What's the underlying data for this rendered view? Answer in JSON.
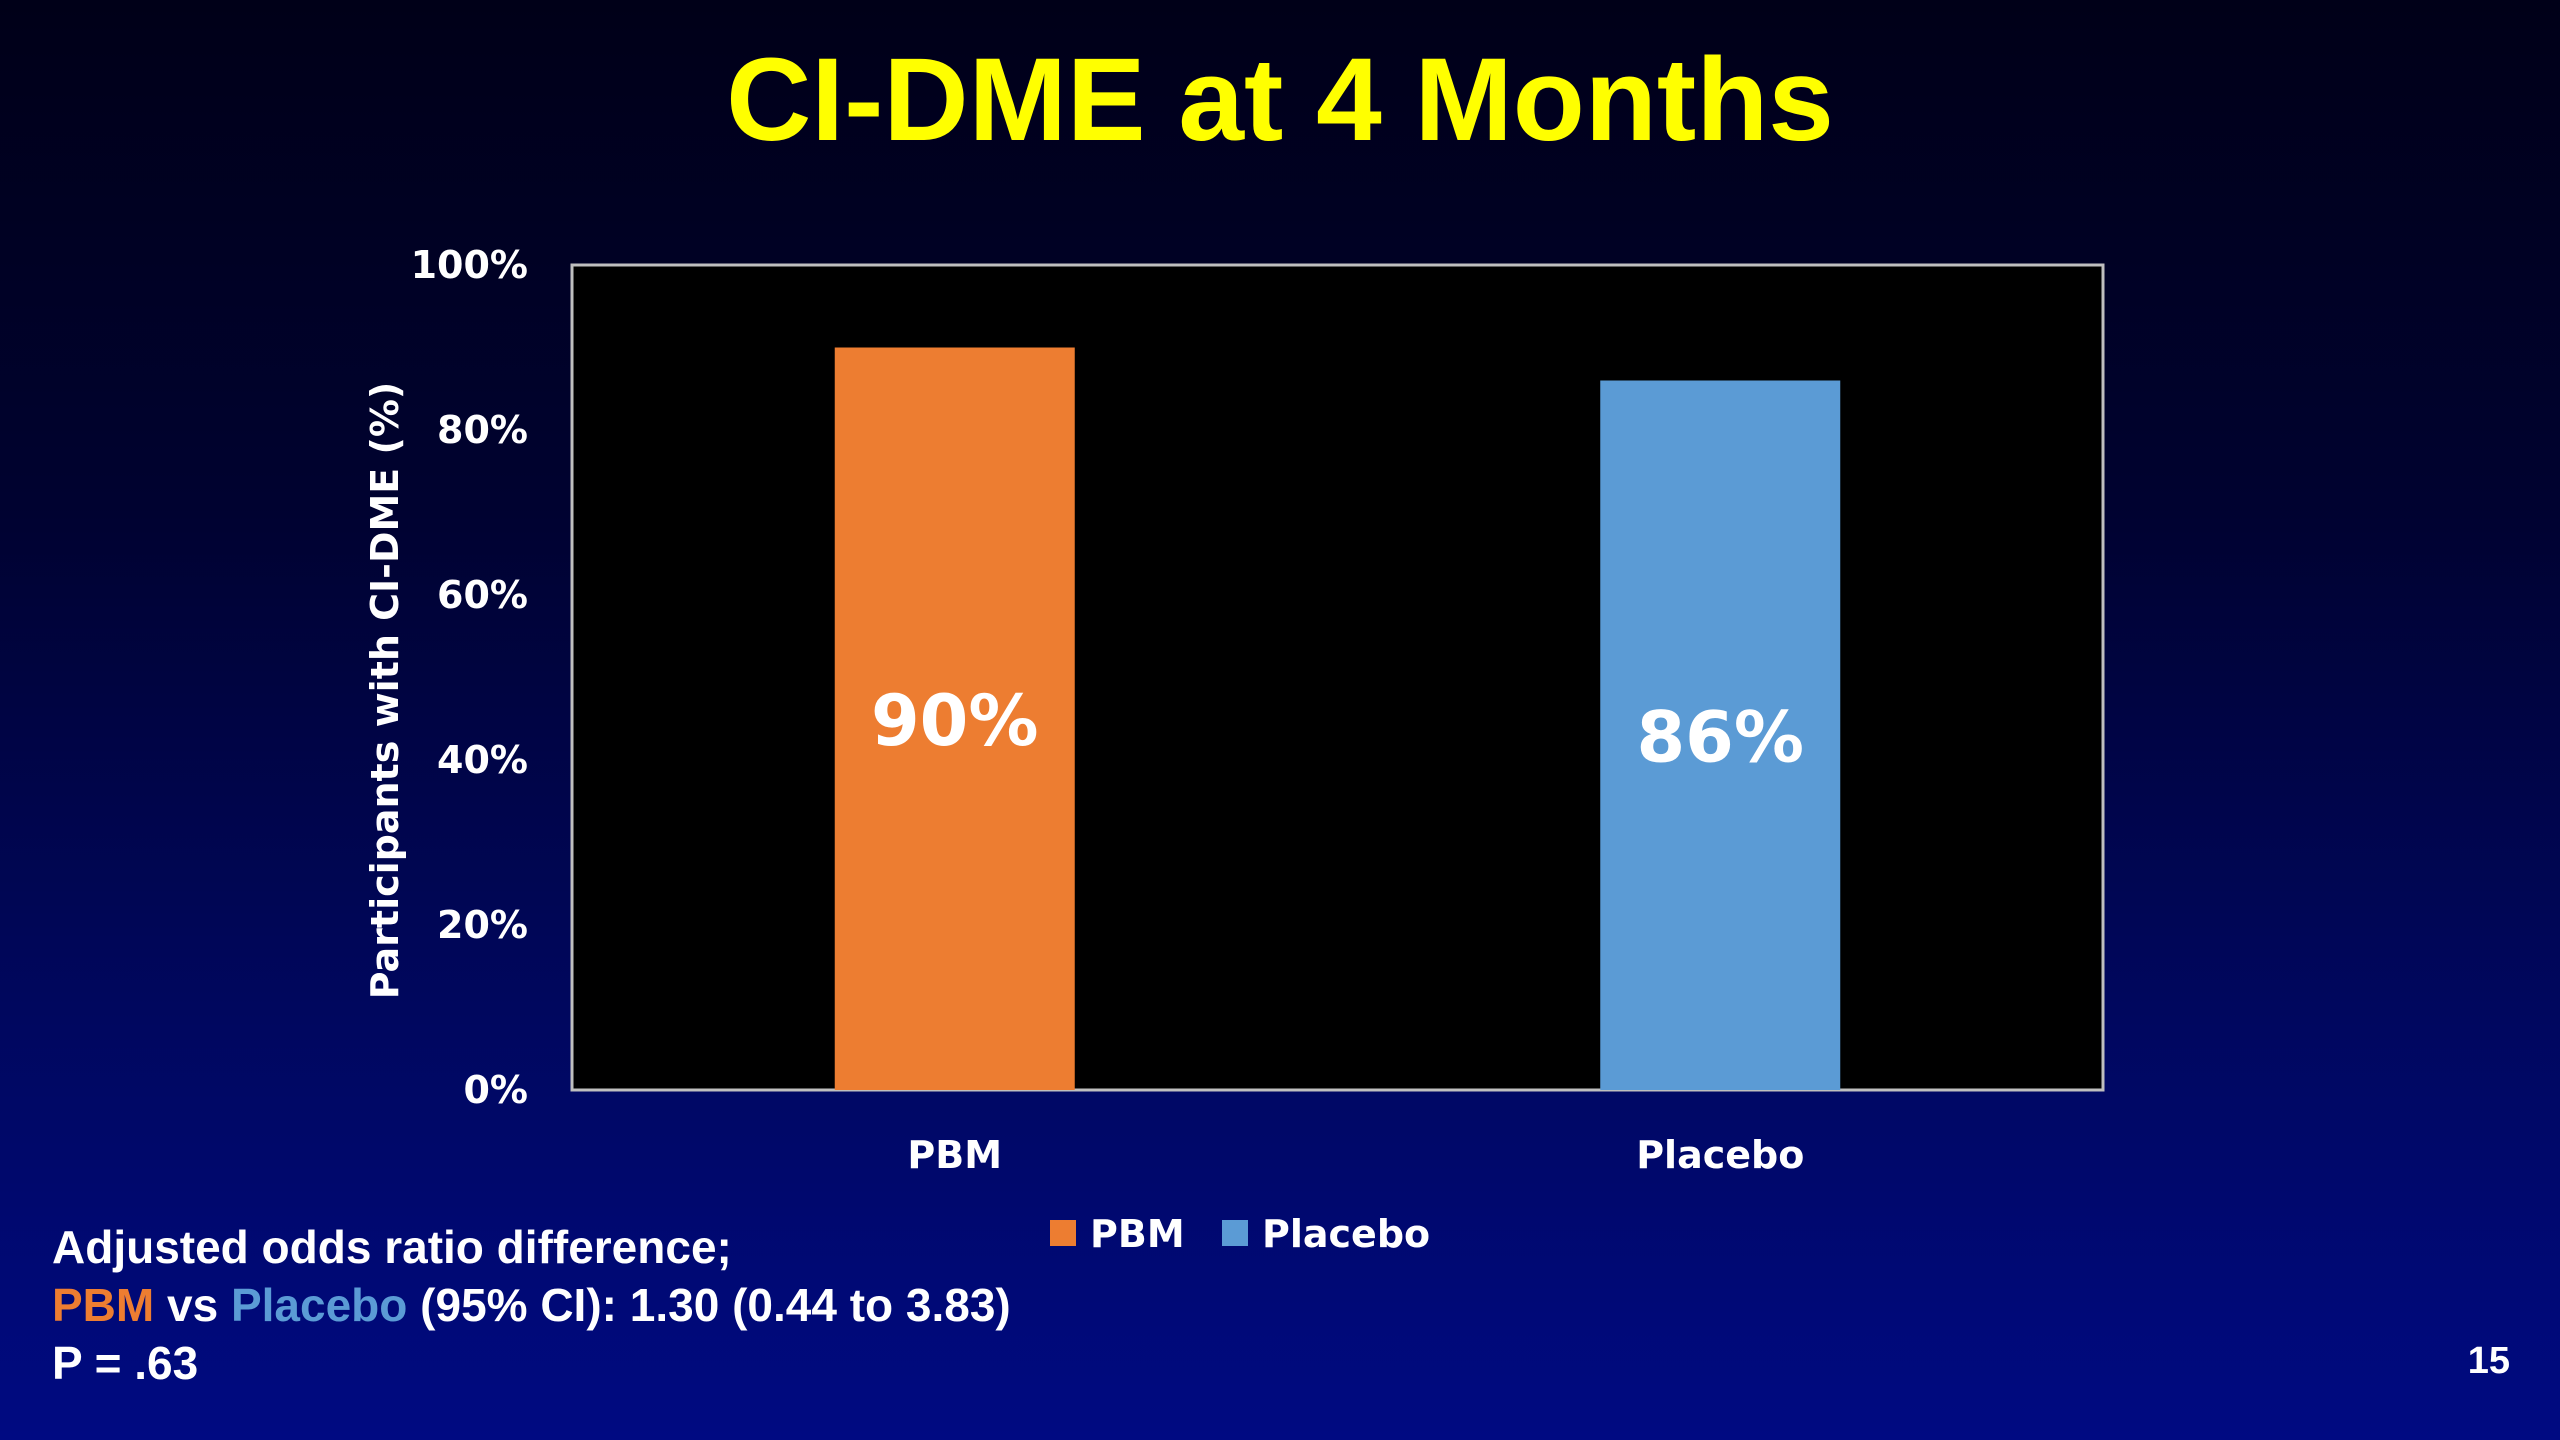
{
  "slide": {
    "title": "CI-DME at 4 Months",
    "page_number": "15"
  },
  "colors": {
    "title": "#ffff00",
    "pbm": "#ed7d31",
    "placebo": "#5b9bd5",
    "plot_background": "#000000",
    "text": "#ffffff"
  },
  "chart_data": {
    "type": "bar",
    "title": "",
    "xlabel": "",
    "ylabel": "Participants with CI-DME (%)",
    "ylim": [
      0,
      100
    ],
    "y_ticks": [
      0,
      20,
      40,
      60,
      80,
      100
    ],
    "y_tick_labels": [
      "0%",
      "20%",
      "40%",
      "60%",
      "80%",
      "100%"
    ],
    "categories": [
      "PBM",
      "Placebo"
    ],
    "values": [
      90,
      86
    ],
    "data_labels": [
      "90%",
      "86%"
    ],
    "bar_colors": [
      "#ed7d31",
      "#5b9bd5"
    ],
    "legend": {
      "position": "bottom-center",
      "entries": [
        {
          "label": "PBM",
          "color": "#ed7d31"
        },
        {
          "label": "Placebo",
          "color": "#5b9bd5"
        }
      ]
    },
    "grid": false
  },
  "footnote": {
    "line1": "Adjusted odds ratio difference;",
    "pbm_label": "PBM",
    "vs_text": " vs ",
    "placebo_label": "Placebo",
    "ci_text": " (95% CI): 1.30 (0.44 to 3.83)",
    "line3": "P = .63"
  }
}
